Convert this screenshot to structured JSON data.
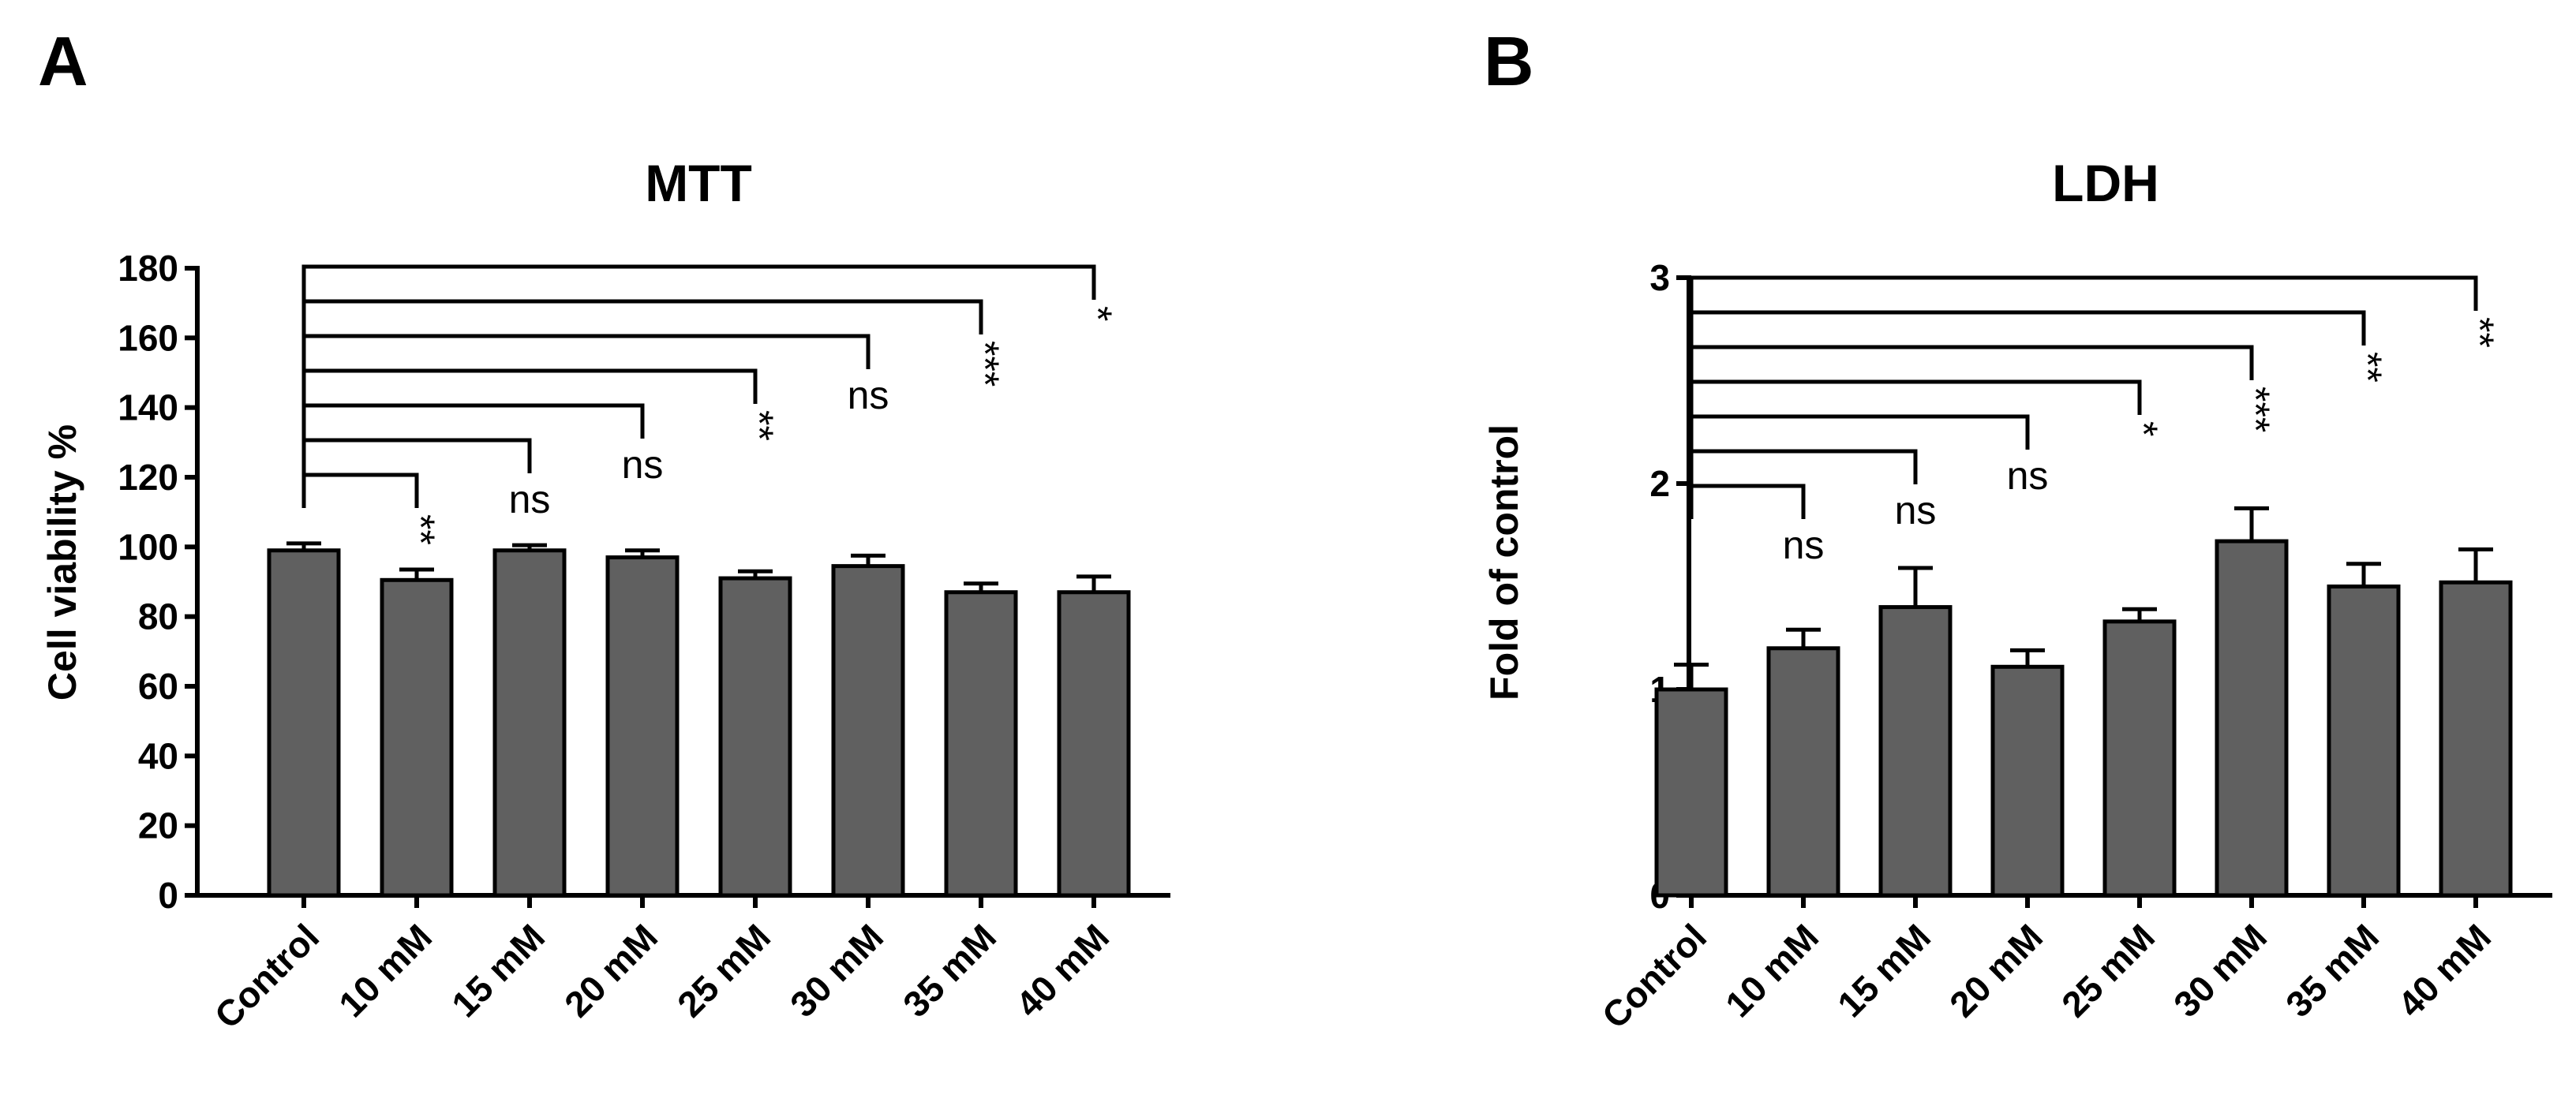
{
  "chart_data": [
    {
      "type": "bar",
      "panel": "A",
      "title": "MTT",
      "xlabel": "",
      "ylabel": "Cell viability %",
      "ylim": [
        0,
        180
      ],
      "yticks": [
        0,
        20,
        40,
        60,
        80,
        100,
        120,
        140,
        160,
        180
      ],
      "categories": [
        "Control",
        "10 mM",
        "15 mM",
        "20 mM",
        "25 mM",
        "30 mM",
        "35 mM",
        "40 mM"
      ],
      "values": [
        99,
        90.5,
        99,
        97,
        91,
        94.5,
        87,
        87
      ],
      "errors": [
        2,
        3,
        1.5,
        2,
        2,
        3,
        2.5,
        4.5
      ],
      "significance": [
        {
          "compare_to": "10 mM",
          "label": "**",
          "rotated": true
        },
        {
          "compare_to": "15 mM",
          "label": "ns",
          "rotated": false
        },
        {
          "compare_to": "20 mM",
          "label": "ns",
          "rotated": false
        },
        {
          "compare_to": "25 mM",
          "label": "**",
          "rotated": true
        },
        {
          "compare_to": "30 mM",
          "label": "ns",
          "rotated": false
        },
        {
          "compare_to": "35 mM",
          "label": "***",
          "rotated": true
        },
        {
          "compare_to": "40 mM",
          "label": "*",
          "rotated": true
        }
      ]
    },
    {
      "type": "bar",
      "panel": "B",
      "title": "LDH",
      "xlabel": "",
      "ylabel": "Fold of control",
      "ylim": [
        0,
        3
      ],
      "yticks": [
        0,
        1,
        2,
        3
      ],
      "categories": [
        "Control",
        "10 mM",
        "15 mM",
        "20 mM",
        "25 mM",
        "30 mM",
        "35 mM",
        "40 mM"
      ],
      "values": [
        1.0,
        1.2,
        1.4,
        1.11,
        1.33,
        1.72,
        1.5,
        1.52
      ],
      "errors": [
        0.12,
        0.09,
        0.19,
        0.08,
        0.06,
        0.16,
        0.11,
        0.16
      ],
      "significance": [
        {
          "compare_to": "10 mM",
          "label": "ns",
          "rotated": false
        },
        {
          "compare_to": "15 mM",
          "label": "ns",
          "rotated": false
        },
        {
          "compare_to": "20 mM",
          "label": "ns",
          "rotated": false
        },
        {
          "compare_to": "25 mM",
          "label": "*",
          "rotated": true
        },
        {
          "compare_to": "30 mM",
          "label": "***",
          "rotated": true
        },
        {
          "compare_to": "35 mM",
          "label": "**",
          "rotated": true
        },
        {
          "compare_to": "40 mM",
          "label": "**",
          "rotated": true
        }
      ]
    }
  ]
}
